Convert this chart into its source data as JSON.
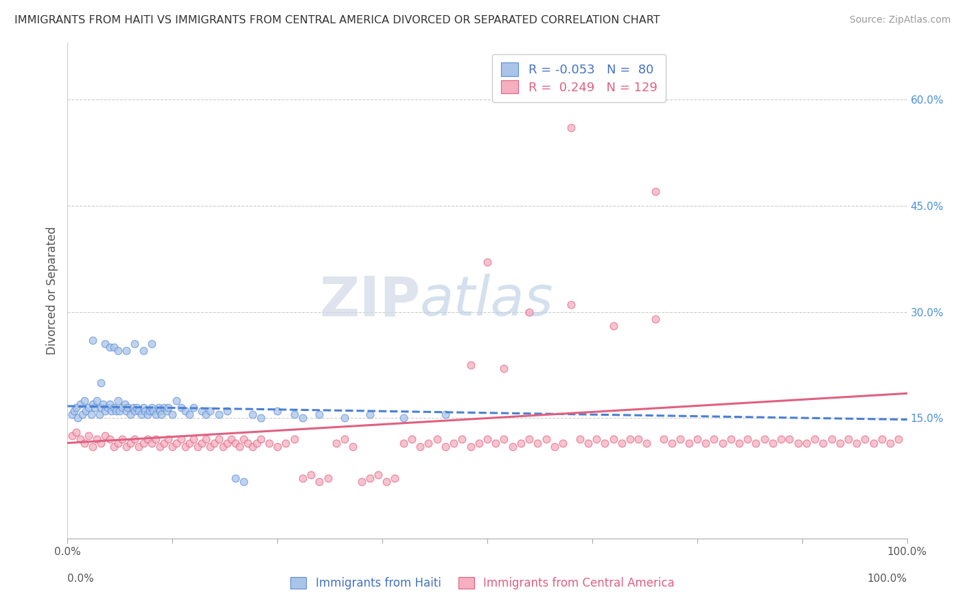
{
  "title": "IMMIGRANTS FROM HAITI VS IMMIGRANTS FROM CENTRAL AMERICA DIVORCED OR SEPARATED CORRELATION CHART",
  "source": "Source: ZipAtlas.com",
  "ylabel": "Divorced or Separated",
  "right_yticks": [
    "15.0%",
    "30.0%",
    "45.0%",
    "60.0%"
  ],
  "right_ytick_vals": [
    0.15,
    0.3,
    0.45,
    0.6
  ],
  "legend1_r": "-0.053",
  "legend1_n": "80",
  "legend2_r": "0.249",
  "legend2_n": "129",
  "blue_fill": "#aac4e8",
  "blue_edge": "#5b8dd9",
  "pink_fill": "#f5afc0",
  "pink_edge": "#e06080",
  "blue_line": "#4a7fd4",
  "pink_line": "#e06080",
  "watermark_zip": "ZIP",
  "watermark_atlas": "atlas",
  "xlim": [
    0.0,
    1.0
  ],
  "ylim": [
    -0.02,
    0.68
  ],
  "haiti_points_x": [
    0.005,
    0.008,
    0.01,
    0.012,
    0.015,
    0.018,
    0.02,
    0.022,
    0.025,
    0.028,
    0.03,
    0.03,
    0.032,
    0.035,
    0.038,
    0.04,
    0.04,
    0.042,
    0.045,
    0.045,
    0.048,
    0.05,
    0.05,
    0.052,
    0.055,
    0.055,
    0.058,
    0.06,
    0.06,
    0.062,
    0.065,
    0.068,
    0.07,
    0.07,
    0.072,
    0.075,
    0.078,
    0.08,
    0.08,
    0.082,
    0.085,
    0.088,
    0.09,
    0.09,
    0.092,
    0.095,
    0.098,
    0.1,
    0.1,
    0.102,
    0.105,
    0.108,
    0.11,
    0.112,
    0.115,
    0.118,
    0.12,
    0.125,
    0.13,
    0.135,
    0.14,
    0.145,
    0.15,
    0.16,
    0.165,
    0.17,
    0.18,
    0.19,
    0.2,
    0.21,
    0.22,
    0.23,
    0.25,
    0.27,
    0.28,
    0.3,
    0.33,
    0.36,
    0.4,
    0.45
  ],
  "haiti_points_y": [
    0.155,
    0.16,
    0.165,
    0.15,
    0.17,
    0.155,
    0.175,
    0.16,
    0.165,
    0.155,
    0.26,
    0.17,
    0.165,
    0.175,
    0.155,
    0.2,
    0.165,
    0.17,
    0.255,
    0.16,
    0.165,
    0.25,
    0.17,
    0.16,
    0.25,
    0.165,
    0.16,
    0.245,
    0.175,
    0.16,
    0.165,
    0.17,
    0.245,
    0.16,
    0.165,
    0.155,
    0.165,
    0.255,
    0.16,
    0.165,
    0.16,
    0.155,
    0.245,
    0.165,
    0.16,
    0.155,
    0.16,
    0.255,
    0.165,
    0.16,
    0.155,
    0.165,
    0.16,
    0.155,
    0.165,
    0.16,
    0.165,
    0.155,
    0.175,
    0.165,
    0.16,
    0.155,
    0.165,
    0.16,
    0.155,
    0.16,
    0.155,
    0.16,
    0.065,
    0.06,
    0.155,
    0.15,
    0.16,
    0.155,
    0.15,
    0.155,
    0.15,
    0.155,
    0.15,
    0.155
  ],
  "central_points_x": [
    0.005,
    0.01,
    0.015,
    0.02,
    0.025,
    0.03,
    0.035,
    0.04,
    0.045,
    0.05,
    0.055,
    0.06,
    0.065,
    0.07,
    0.075,
    0.08,
    0.085,
    0.09,
    0.095,
    0.1,
    0.105,
    0.11,
    0.115,
    0.12,
    0.125,
    0.13,
    0.135,
    0.14,
    0.145,
    0.15,
    0.155,
    0.16,
    0.165,
    0.17,
    0.175,
    0.18,
    0.185,
    0.19,
    0.195,
    0.2,
    0.205,
    0.21,
    0.215,
    0.22,
    0.225,
    0.23,
    0.24,
    0.25,
    0.26,
    0.27,
    0.28,
    0.29,
    0.3,
    0.31,
    0.32,
    0.33,
    0.34,
    0.35,
    0.36,
    0.37,
    0.38,
    0.39,
    0.4,
    0.41,
    0.42,
    0.43,
    0.44,
    0.45,
    0.46,
    0.47,
    0.48,
    0.49,
    0.5,
    0.51,
    0.52,
    0.53,
    0.54,
    0.55,
    0.56,
    0.57,
    0.58,
    0.59,
    0.6,
    0.61,
    0.62,
    0.63,
    0.64,
    0.65,
    0.66,
    0.67,
    0.68,
    0.69,
    0.7,
    0.71,
    0.72,
    0.73,
    0.74,
    0.75,
    0.76,
    0.77,
    0.78,
    0.79,
    0.8,
    0.81,
    0.82,
    0.83,
    0.84,
    0.85,
    0.86,
    0.87,
    0.88,
    0.89,
    0.9,
    0.91,
    0.92,
    0.93,
    0.94,
    0.95,
    0.96,
    0.97,
    0.98,
    0.99,
    0.48,
    0.52,
    0.5,
    0.55,
    0.6,
    0.65,
    0.7
  ],
  "central_points_y": [
    0.125,
    0.13,
    0.12,
    0.115,
    0.125,
    0.11,
    0.12,
    0.115,
    0.125,
    0.12,
    0.11,
    0.115,
    0.12,
    0.11,
    0.115,
    0.12,
    0.11,
    0.115,
    0.12,
    0.115,
    0.12,
    0.11,
    0.115,
    0.12,
    0.11,
    0.115,
    0.12,
    0.11,
    0.115,
    0.12,
    0.11,
    0.115,
    0.12,
    0.11,
    0.115,
    0.12,
    0.11,
    0.115,
    0.12,
    0.115,
    0.11,
    0.12,
    0.115,
    0.11,
    0.115,
    0.12,
    0.115,
    0.11,
    0.115,
    0.12,
    0.065,
    0.07,
    0.06,
    0.065,
    0.115,
    0.12,
    0.11,
    0.06,
    0.065,
    0.07,
    0.06,
    0.065,
    0.115,
    0.12,
    0.11,
    0.115,
    0.12,
    0.11,
    0.115,
    0.12,
    0.11,
    0.115,
    0.12,
    0.115,
    0.12,
    0.11,
    0.115,
    0.12,
    0.115,
    0.12,
    0.11,
    0.115,
    0.56,
    0.12,
    0.115,
    0.12,
    0.115,
    0.12,
    0.115,
    0.12,
    0.12,
    0.115,
    0.47,
    0.12,
    0.115,
    0.12,
    0.115,
    0.12,
    0.115,
    0.12,
    0.115,
    0.12,
    0.115,
    0.12,
    0.115,
    0.12,
    0.115,
    0.12,
    0.12,
    0.115,
    0.115,
    0.12,
    0.115,
    0.12,
    0.115,
    0.12,
    0.115,
    0.12,
    0.115,
    0.12,
    0.115,
    0.12,
    0.225,
    0.22,
    0.37,
    0.3,
    0.31,
    0.28,
    0.29
  ]
}
